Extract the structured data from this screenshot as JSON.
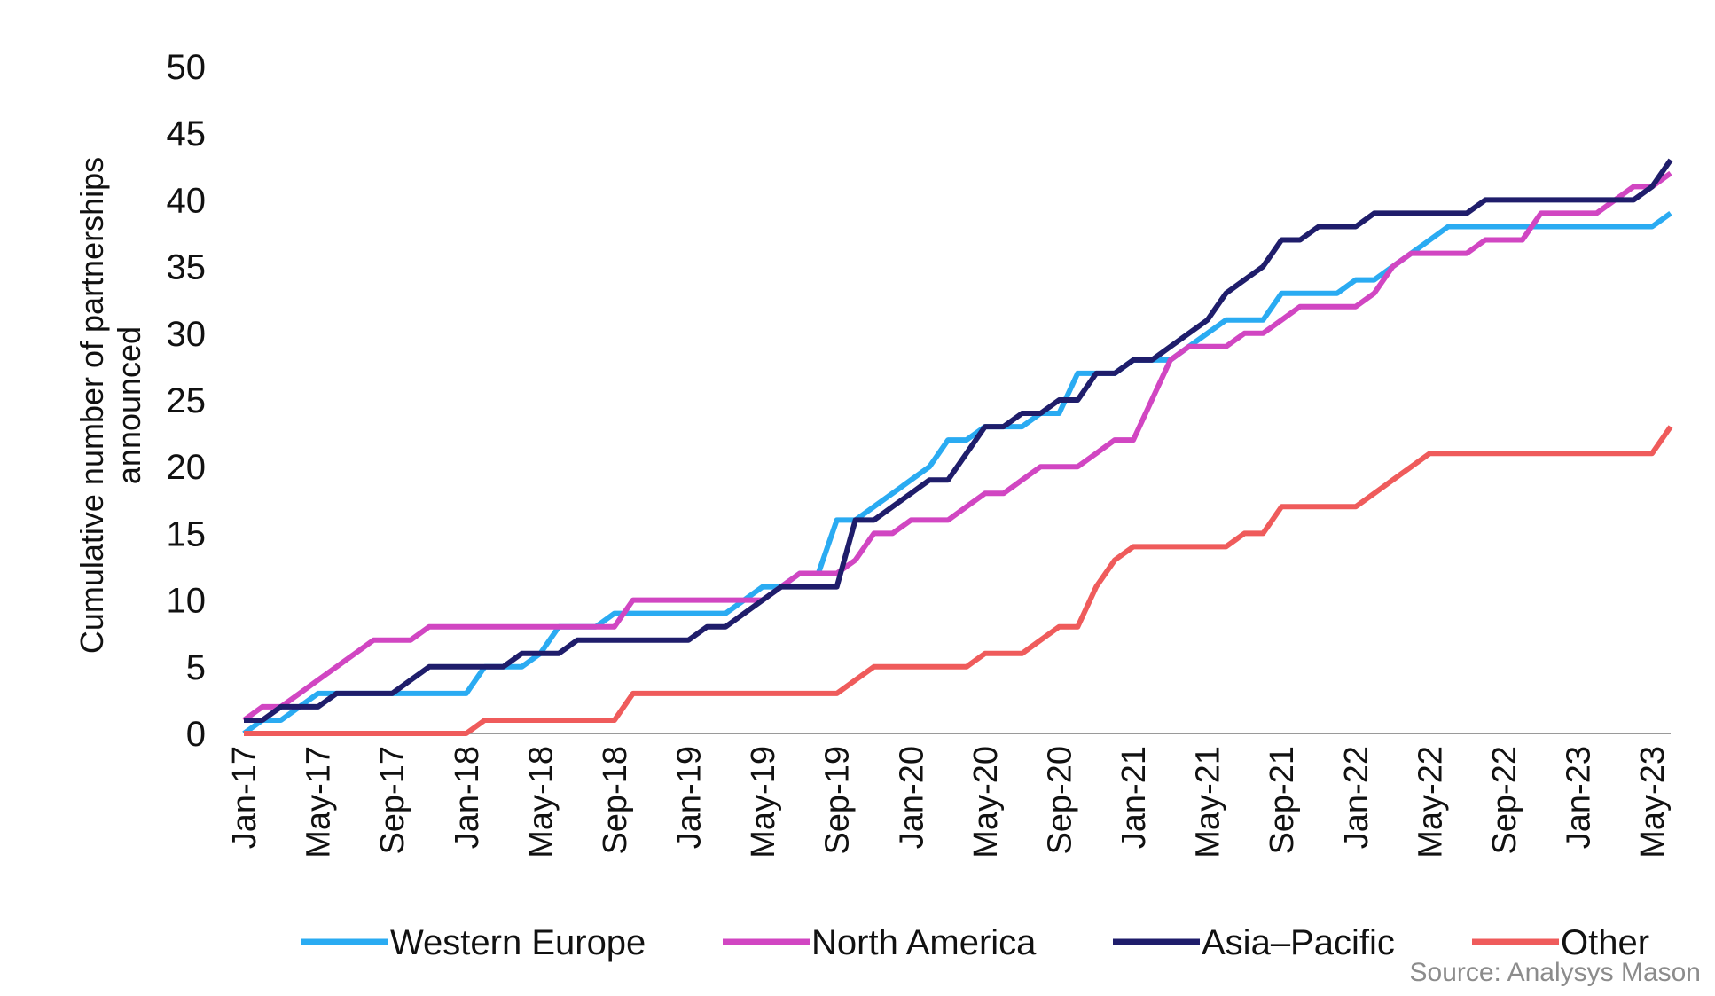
{
  "chart_data": {
    "type": "line",
    "y_axis_label": "Cumulative number of partnerships announced",
    "source": "Source: Analysys Mason",
    "categories": [
      "Jan-17",
      null,
      null,
      null,
      "May-17",
      null,
      null,
      null,
      "Sep-17",
      null,
      null,
      null,
      "Jan-18",
      null,
      null,
      null,
      "May-18",
      null,
      null,
      null,
      "Sep-18",
      null,
      null,
      null,
      "Jan-19",
      null,
      null,
      null,
      "May-19",
      null,
      null,
      null,
      "Sep-19",
      null,
      null,
      null,
      "Jan-20",
      null,
      null,
      null,
      "May-20",
      null,
      null,
      null,
      "Sep-20",
      null,
      null,
      null,
      "Jan-21",
      null,
      null,
      null,
      "May-21",
      null,
      null,
      null,
      "Sep-21",
      null,
      null,
      null,
      "Jan-22",
      null,
      null,
      null,
      "May-22",
      null,
      null,
      null,
      "Sep-22",
      null,
      null,
      null,
      "Jan-23",
      null,
      null,
      null,
      "May-23",
      null
    ],
    "series": [
      {
        "name": "Western Europe",
        "color": "#2aabf2",
        "values": [
          0,
          1,
          1,
          2,
          3,
          3,
          3,
          3,
          3,
          3,
          3,
          3,
          3,
          5,
          5,
          5,
          6,
          8,
          8,
          8,
          9,
          9,
          9,
          9,
          9,
          9,
          9,
          10,
          11,
          11,
          12,
          12,
          16,
          16,
          17,
          18,
          19,
          20,
          22,
          22,
          23,
          23,
          23,
          24,
          24,
          27,
          27,
          27,
          28,
          28,
          28,
          29,
          30,
          31,
          31,
          31,
          33,
          33,
          33,
          33,
          34,
          34,
          35,
          36,
          37,
          38,
          38,
          38,
          38,
          38,
          38,
          38,
          38,
          38,
          38,
          38,
          38,
          39
        ]
      },
      {
        "name": "North America",
        "color": "#d146c2",
        "values": [
          1,
          2,
          2,
          3,
          4,
          5,
          6,
          7,
          7,
          7,
          8,
          8,
          8,
          8,
          8,
          8,
          8,
          8,
          8,
          8,
          8,
          10,
          10,
          10,
          10,
          10,
          10,
          10,
          10,
          11,
          12,
          12,
          12,
          13,
          15,
          15,
          16,
          16,
          16,
          17,
          18,
          18,
          19,
          20,
          20,
          20,
          21,
          22,
          22,
          25,
          28,
          29,
          29,
          29,
          30,
          30,
          31,
          32,
          32,
          32,
          32,
          33,
          35,
          36,
          36,
          36,
          36,
          37,
          37,
          37,
          39,
          39,
          39,
          39,
          40,
          41,
          41,
          42
        ]
      },
      {
        "name": "Asia–Pacific",
        "color": "#1f1d6b",
        "values": [
          1,
          1,
          2,
          2,
          2,
          3,
          3,
          3,
          3,
          4,
          5,
          5,
          5,
          5,
          5,
          6,
          6,
          6,
          7,
          7,
          7,
          7,
          7,
          7,
          7,
          8,
          8,
          9,
          10,
          11,
          11,
          11,
          11,
          16,
          16,
          17,
          18,
          19,
          19,
          21,
          23,
          23,
          24,
          24,
          25,
          25,
          27,
          27,
          28,
          28,
          29,
          30,
          31,
          33,
          34,
          35,
          37,
          37,
          38,
          38,
          38,
          39,
          39,
          39,
          39,
          39,
          39,
          40,
          40,
          40,
          40,
          40,
          40,
          40,
          40,
          40,
          41,
          43
        ]
      },
      {
        "name": "Other",
        "color": "#ef5b5b",
        "values": [
          0,
          0,
          0,
          0,
          0,
          0,
          0,
          0,
          0,
          0,
          0,
          0,
          0,
          1,
          1,
          1,
          1,
          1,
          1,
          1,
          1,
          3,
          3,
          3,
          3,
          3,
          3,
          3,
          3,
          3,
          3,
          3,
          3,
          4,
          5,
          5,
          5,
          5,
          5,
          5,
          6,
          6,
          6,
          7,
          8,
          8,
          11,
          13,
          14,
          14,
          14,
          14,
          14,
          14,
          15,
          15,
          17,
          17,
          17,
          17,
          17,
          18,
          19,
          20,
          21,
          21,
          21,
          21,
          21,
          21,
          21,
          21,
          21,
          21,
          21,
          21,
          21,
          23
        ]
      }
    ],
    "ylim": [
      0,
      50
    ],
    "yticks": [
      0,
      5,
      10,
      15,
      20,
      25,
      30,
      35,
      40,
      45,
      50
    ],
    "grid": false,
    "legend": "bottom"
  }
}
